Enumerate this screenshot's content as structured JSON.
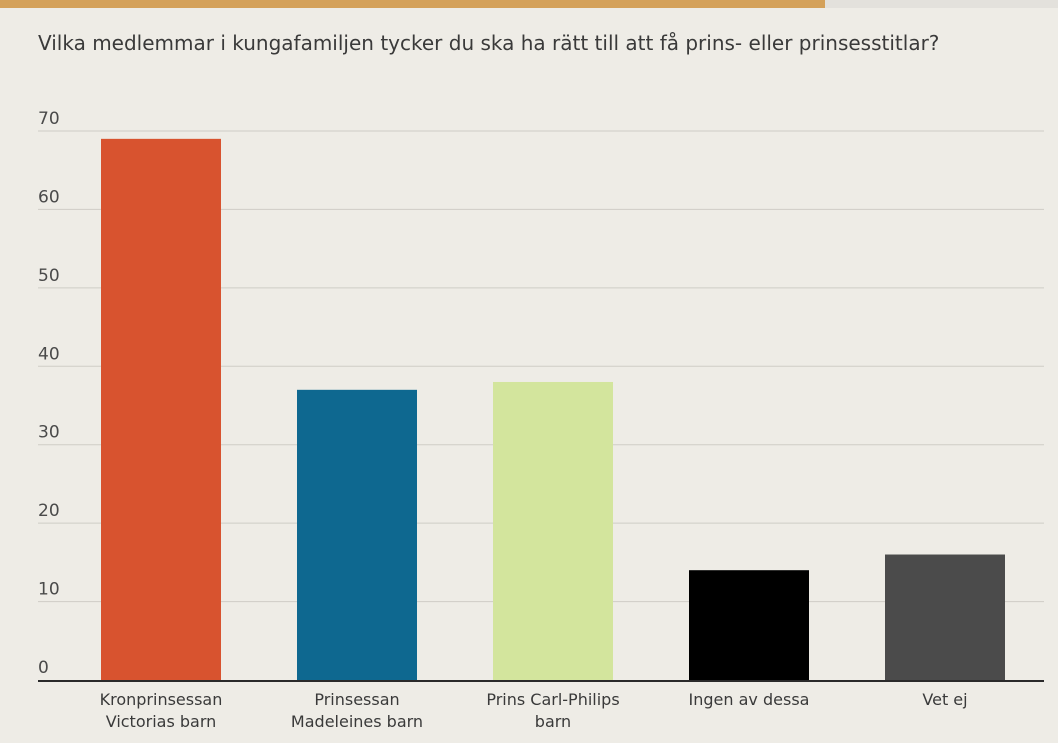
{
  "page": {
    "progress_fraction": 0.78
  },
  "chart_data": {
    "type": "bar",
    "title": "Vilka medlemmar i kungafamiljen tycker du ska ha rätt till att få prins- eller prinsesstitlar?",
    "categories": [
      [
        "Kronprinsessan",
        "Victorias barn"
      ],
      [
        "Prinsessan",
        "Madeleines barn"
      ],
      [
        "Prins Carl-Philips",
        "barn"
      ],
      [
        "Ingen av dessa"
      ],
      [
        "Vet ej"
      ]
    ],
    "values": [
      69,
      37,
      38,
      14,
      16
    ],
    "colors": [
      "#d8532f",
      "#0e6890",
      "#d3e59d",
      "#000000",
      "#4b4b4b"
    ],
    "ylim": [
      0,
      70
    ],
    "yticks": [
      "0",
      "10",
      "20",
      "30",
      "40",
      "50",
      "60",
      "70"
    ],
    "grid": true,
    "legend": false,
    "progress_color": "#d4a15a",
    "grid_color": "#cfcdc6",
    "axis_color": "#2a2a2a"
  }
}
